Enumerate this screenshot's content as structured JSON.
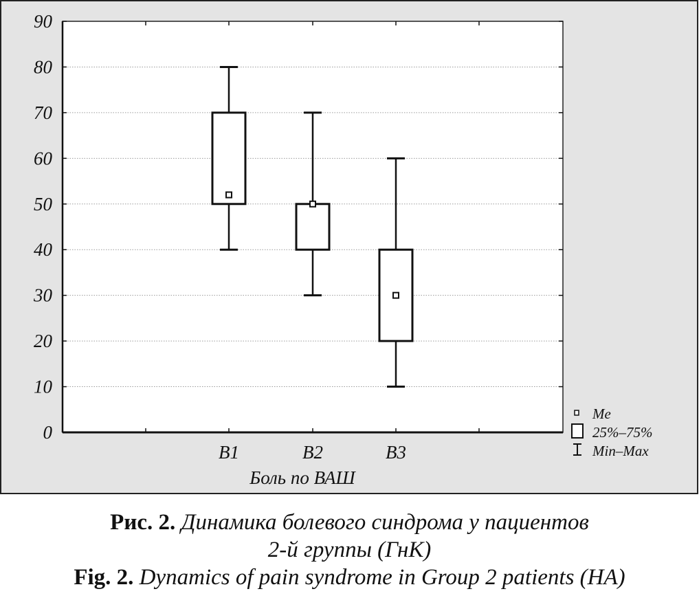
{
  "chart_data": {
    "type": "boxplot",
    "categories": [
      "B1",
      "B2",
      "B3"
    ],
    "boxes": [
      {
        "category": "B1",
        "median": 52,
        "q1": 50,
        "q3": 70,
        "min": 40,
        "max": 80
      },
      {
        "category": "B2",
        "median": 50,
        "q1": 40,
        "q3": 50,
        "min": 30,
        "max": 70
      },
      {
        "category": "B3",
        "median": 30,
        "q1": 20,
        "q3": 40,
        "min": 10,
        "max": 60
      }
    ],
    "ylim": [
      0,
      90
    ],
    "yticks": [
      "0",
      "10",
      "20",
      "30",
      "40",
      "50",
      "60",
      "70",
      "80",
      "90"
    ],
    "xlabel": "Боль по ВАШ",
    "ylabel": "",
    "grid": "horizontal dotted",
    "legend_position": "bottom-right",
    "legend": {
      "median_label": "Me",
      "box_label": "25%–75%",
      "whisker_label": "Min–Max"
    },
    "colors": {
      "frame_bg": "#e4e4e4",
      "plot_bg": "#ffffff",
      "ink": "#111111",
      "grid": "#9a9a9a"
    }
  },
  "caption": {
    "ru_prefix": "Рис. 2.",
    "ru_text_line1": "Динамика болевого синдрома у пациентов",
    "ru_text_line2": "2-й группы (ГнК)",
    "en_prefix": "Fig. 2.",
    "en_text": "Dynamics of pain syndrome in Group 2 patients (HA)"
  }
}
